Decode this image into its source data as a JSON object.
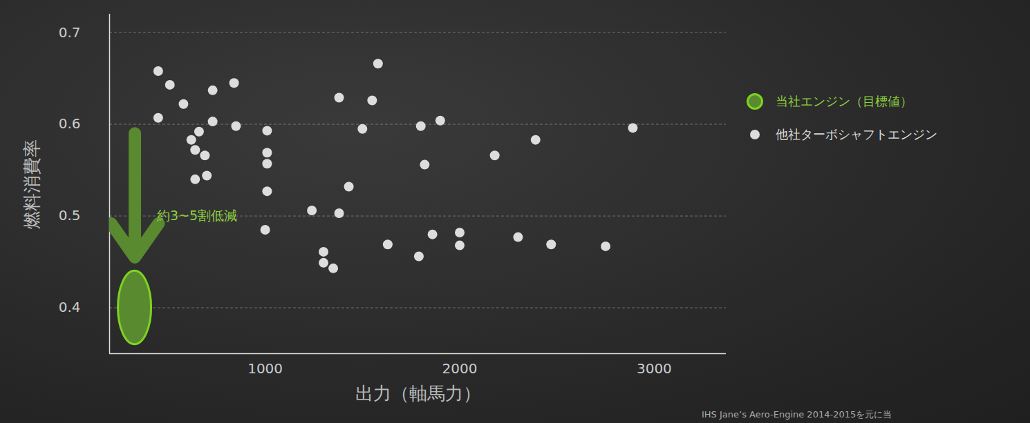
{
  "chart_data": {
    "type": "scatter",
    "xlabel": "出力（軸馬力）",
    "ylabel": "燃料消費率",
    "xlim": [
      200,
      3370
    ],
    "ylim": [
      0.35,
      0.72
    ],
    "xticks": [
      1000,
      2000,
      3000
    ],
    "yticks": [
      0.4,
      0.5,
      0.6,
      0.7
    ],
    "grid": true,
    "legend": "right",
    "series": [
      {
        "name": "当社エンジン（目標値）",
        "color": "#5a8a30",
        "marker": "ellipse",
        "x": [
          330
        ],
        "values": [
          0.4
        ],
        "ylow": [
          0.36
        ],
        "yhigh": [
          0.44
        ]
      },
      {
        "name": "他社ターボシャフトエンジン",
        "color": "#dddddd",
        "marker": "circle",
        "x": [
          450,
          510,
          450,
          580,
          730,
          840,
          620,
          660,
          640,
          690,
          730,
          640,
          700,
          850,
          1010,
          1010,
          1010,
          1010,
          1000,
          1240,
          1300,
          1300,
          1350,
          1380,
          1380,
          1430,
          1550,
          1580,
          1500,
          1630,
          1800,
          1820,
          1900,
          1860,
          1790,
          2000,
          2000,
          2180,
          2300,
          2390,
          2470,
          2750,
          2890
        ],
        "values": [
          0.658,
          0.643,
          0.607,
          0.622,
          0.637,
          0.645,
          0.583,
          0.592,
          0.572,
          0.566,
          0.603,
          0.54,
          0.544,
          0.598,
          0.593,
          0.569,
          0.557,
          0.527,
          0.485,
          0.506,
          0.461,
          0.449,
          0.443,
          0.629,
          0.503,
          0.532,
          0.626,
          0.666,
          0.595,
          0.469,
          0.598,
          0.556,
          0.604,
          0.48,
          0.456,
          0.482,
          0.468,
          0.566,
          0.477,
          0.583,
          0.469,
          0.467,
          0.596
        ]
      }
    ],
    "annotations": [
      {
        "text": "約3~5割低減",
        "x": 330,
        "y": 0.5,
        "arrow_from": 0.59,
        "arrow_to": 0.455
      }
    ],
    "source": "IHS Jane’s Aero-Engine 2014-2015を元に当"
  }
}
